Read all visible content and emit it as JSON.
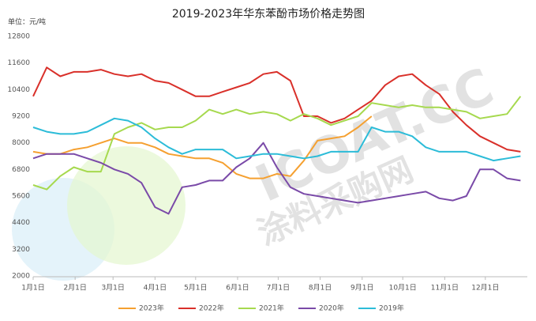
{
  "chart_data": {
    "type": "line",
    "title": "2019-2023年华东苯酚市场价格走势图",
    "y_unit_label": "单位：元/吨",
    "watermark": [
      "ICOAT.CC",
      "涂料采购网"
    ],
    "x": [
      0,
      10,
      20,
      30,
      40,
      50,
      60,
      70,
      80,
      90,
      100,
      110,
      120,
      130,
      140,
      150,
      160,
      170,
      180,
      190,
      200,
      210,
      220,
      230,
      240,
      250,
      260,
      270,
      280,
      290,
      300,
      310,
      320,
      330,
      340,
      350,
      360
    ],
    "xlim": [
      0,
      365
    ],
    "xticks": [
      {
        "value": 0,
        "label": "1月1日"
      },
      {
        "value": 31,
        "label": "2月1日"
      },
      {
        "value": 59,
        "label": "3月1日"
      },
      {
        "value": 90,
        "label": "4月1日"
      },
      {
        "value": 120,
        "label": "5月1日"
      },
      {
        "value": 151,
        "label": "6月1日"
      },
      {
        "value": 181,
        "label": "7月1日"
      },
      {
        "value": 212,
        "label": "8月1日"
      },
      {
        "value": 243,
        "label": "9月1日"
      },
      {
        "value": 273,
        "label": "10月1日"
      },
      {
        "value": 304,
        "label": "11月1日"
      },
      {
        "value": 334,
        "label": "12月1日"
      }
    ],
    "ylim": [
      2000,
      12800
    ],
    "yticks": [
      2000,
      3200,
      4400,
      5600,
      6800,
      8000,
      9200,
      10400,
      11600,
      12800
    ],
    "grid": false,
    "legend": "bottom",
    "series": [
      {
        "name": "2023年",
        "color": "#f5a030",
        "values": [
          7600,
          7500,
          7500,
          7700,
          7800,
          8000,
          8200,
          8000,
          8000,
          7800,
          7500,
          7400,
          7300,
          7300,
          7100,
          6600,
          6400,
          6400,
          6600,
          6500,
          7200,
          8100,
          8200,
          8300,
          8700,
          9200,
          null,
          null,
          null,
          null,
          null,
          null,
          null,
          null,
          null,
          null,
          null
        ]
      },
      {
        "name": "2022年",
        "color": "#d9302a",
        "values": [
          10100,
          11400,
          11000,
          11200,
          11200,
          11300,
          11100,
          11000,
          11100,
          10800,
          10700,
          10400,
          10100,
          10100,
          10300,
          10500,
          10700,
          11100,
          11200,
          10800,
          9200,
          9200,
          8900,
          9100,
          9500,
          9900,
          10600,
          11000,
          11100,
          10600,
          10200,
          9400,
          8800,
          8300,
          8000,
          7700,
          7600
        ]
      },
      {
        "name": "2021年",
        "color": "#a6d94e",
        "values": [
          6100,
          5900,
          6500,
          6900,
          6700,
          6700,
          8400,
          8700,
          8900,
          8600,
          8700,
          8700,
          9000,
          9500,
          9300,
          9500,
          9300,
          9400,
          9300,
          9000,
          9300,
          9100,
          8800,
          9000,
          9200,
          9800,
          9700,
          9600,
          9700,
          9600,
          9600,
          9500,
          9400,
          9100,
          9200,
          9300,
          10100
        ]
      },
      {
        "name": "2020年",
        "color": "#7a4aa8",
        "values": [
          7300,
          7500,
          7500,
          7500,
          7300,
          7100,
          6800,
          6600,
          6200,
          5100,
          4800,
          6000,
          6100,
          6300,
          6300,
          6900,
          7300,
          8000,
          6900,
          6000,
          5700,
          5600,
          5500,
          5400,
          5300,
          5400,
          5500,
          5600,
          5700,
          5800,
          5500,
          5400,
          5600,
          6800,
          6800,
          6400,
          6300
        ]
      },
      {
        "name": "2019年",
        "color": "#2cbcd8",
        "values": [
          8700,
          8500,
          8400,
          8400,
          8500,
          8800,
          9100,
          9000,
          8700,
          8200,
          7800,
          7500,
          7700,
          7700,
          7700,
          7300,
          7400,
          7500,
          7500,
          7400,
          7300,
          7400,
          7600,
          7600,
          7600,
          8700,
          8500,
          8500,
          8300,
          7800,
          7600,
          7600,
          7600,
          7400,
          7200,
          7300,
          7400
        ]
      }
    ]
  }
}
